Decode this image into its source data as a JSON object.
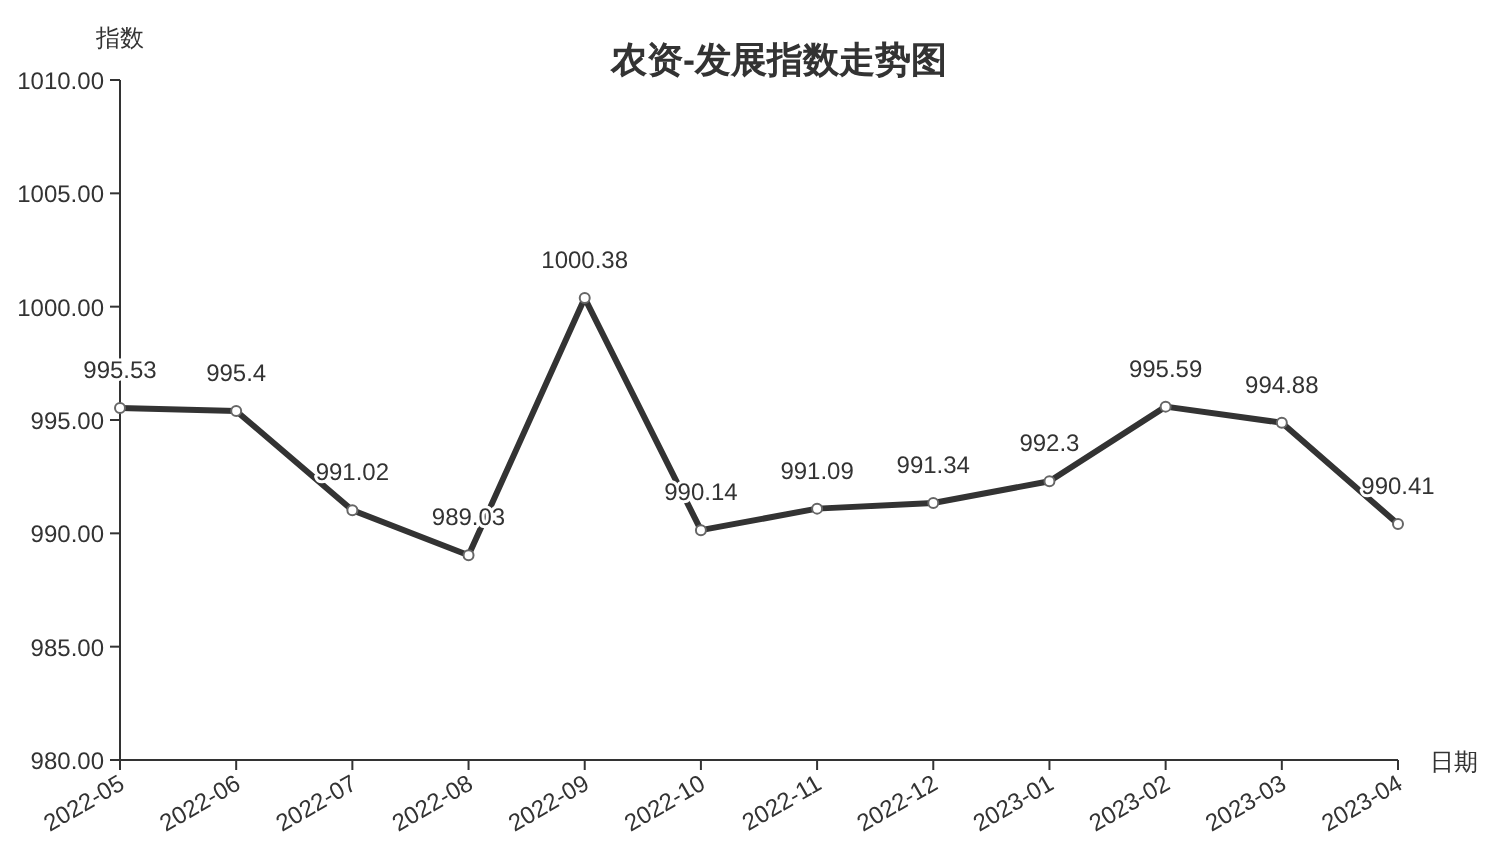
{
  "chart_data": {
    "type": "line",
    "title": "农资-发展指数走势图",
    "xlabel": "日期",
    "ylabel": "指数",
    "categories": [
      "2022-05",
      "2022-06",
      "2022-07",
      "2022-08",
      "2022-09",
      "2022-10",
      "2022-11",
      "2022-12",
      "2023-01",
      "2023-02",
      "2023-03",
      "2023-04"
    ],
    "series": [
      {
        "color": "#333333",
        "values": [
          995.53,
          995.4,
          991.02,
          989.03,
          1000.38,
          990.14,
          991.09,
          991.34,
          992.3,
          995.59,
          994.88,
          990.41
        ]
      }
    ],
    "ylim": [
      980,
      1010
    ],
    "yticks": [
      {
        "value": 980,
        "label": "980.00"
      },
      {
        "value": 985,
        "label": "985.00"
      },
      {
        "value": 990,
        "label": "990.00"
      },
      {
        "value": 995,
        "label": "995.00"
      },
      {
        "value": 1000,
        "label": "1000.00"
      },
      {
        "value": 1005,
        "label": "1005.00"
      },
      {
        "value": 1010,
        "label": "1010.00"
      }
    ],
    "data_labels": true,
    "marker": "circle",
    "line_style": "solid"
  }
}
